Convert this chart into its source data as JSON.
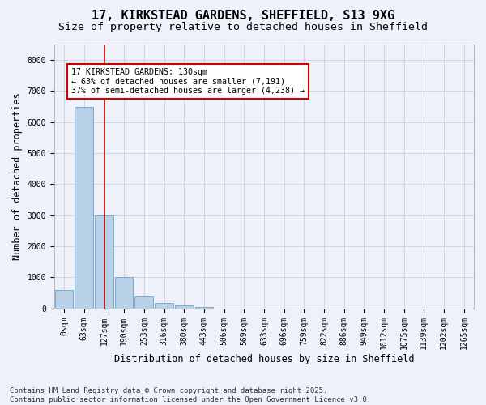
{
  "title": "17, KIRKSTEAD GARDENS, SHEFFIELD, S13 9XG",
  "subtitle": "Size of property relative to detached houses in Sheffield",
  "xlabel": "Distribution of detached houses by size in Sheffield",
  "ylabel": "Number of detached properties",
  "bar_color": "#b8d0e8",
  "bar_edge_color": "#7aaaca",
  "vline_color": "#cc0000",
  "vline_x": 2.03,
  "annotation_title": "17 KIRKSTEAD GARDENS: 130sqm",
  "annotation_line1": "← 63% of detached houses are smaller (7,191)",
  "annotation_line2": "37% of semi-detached houses are larger (4,238) →",
  "annotation_box_color": "#ffffff",
  "annotation_box_edge": "#cc0000",
  "bin_labels": [
    "0sqm",
    "63sqm",
    "127sqm",
    "190sqm",
    "253sqm",
    "316sqm",
    "380sqm",
    "443sqm",
    "506sqm",
    "569sqm",
    "633sqm",
    "696sqm",
    "759sqm",
    "822sqm",
    "886sqm",
    "949sqm",
    "1012sqm",
    "1075sqm",
    "1139sqm",
    "1202sqm",
    "1265sqm"
  ],
  "bar_heights": [
    600,
    6500,
    3000,
    1000,
    380,
    160,
    90,
    50,
    0,
    0,
    0,
    0,
    0,
    0,
    0,
    0,
    0,
    0,
    0,
    0,
    0
  ],
  "ylim": [
    0,
    8500
  ],
  "yticks": [
    0,
    1000,
    2000,
    3000,
    4000,
    5000,
    6000,
    7000,
    8000
  ],
  "background_color": "#eef1fa",
  "grid_color": "#c8cfe8",
  "footer1": "Contains HM Land Registry data © Crown copyright and database right 2025.",
  "footer2": "Contains public sector information licensed under the Open Government Licence v3.0.",
  "title_fontsize": 11,
  "subtitle_fontsize": 9.5,
  "label_fontsize": 8.5,
  "tick_fontsize": 7,
  "footer_fontsize": 6.5
}
